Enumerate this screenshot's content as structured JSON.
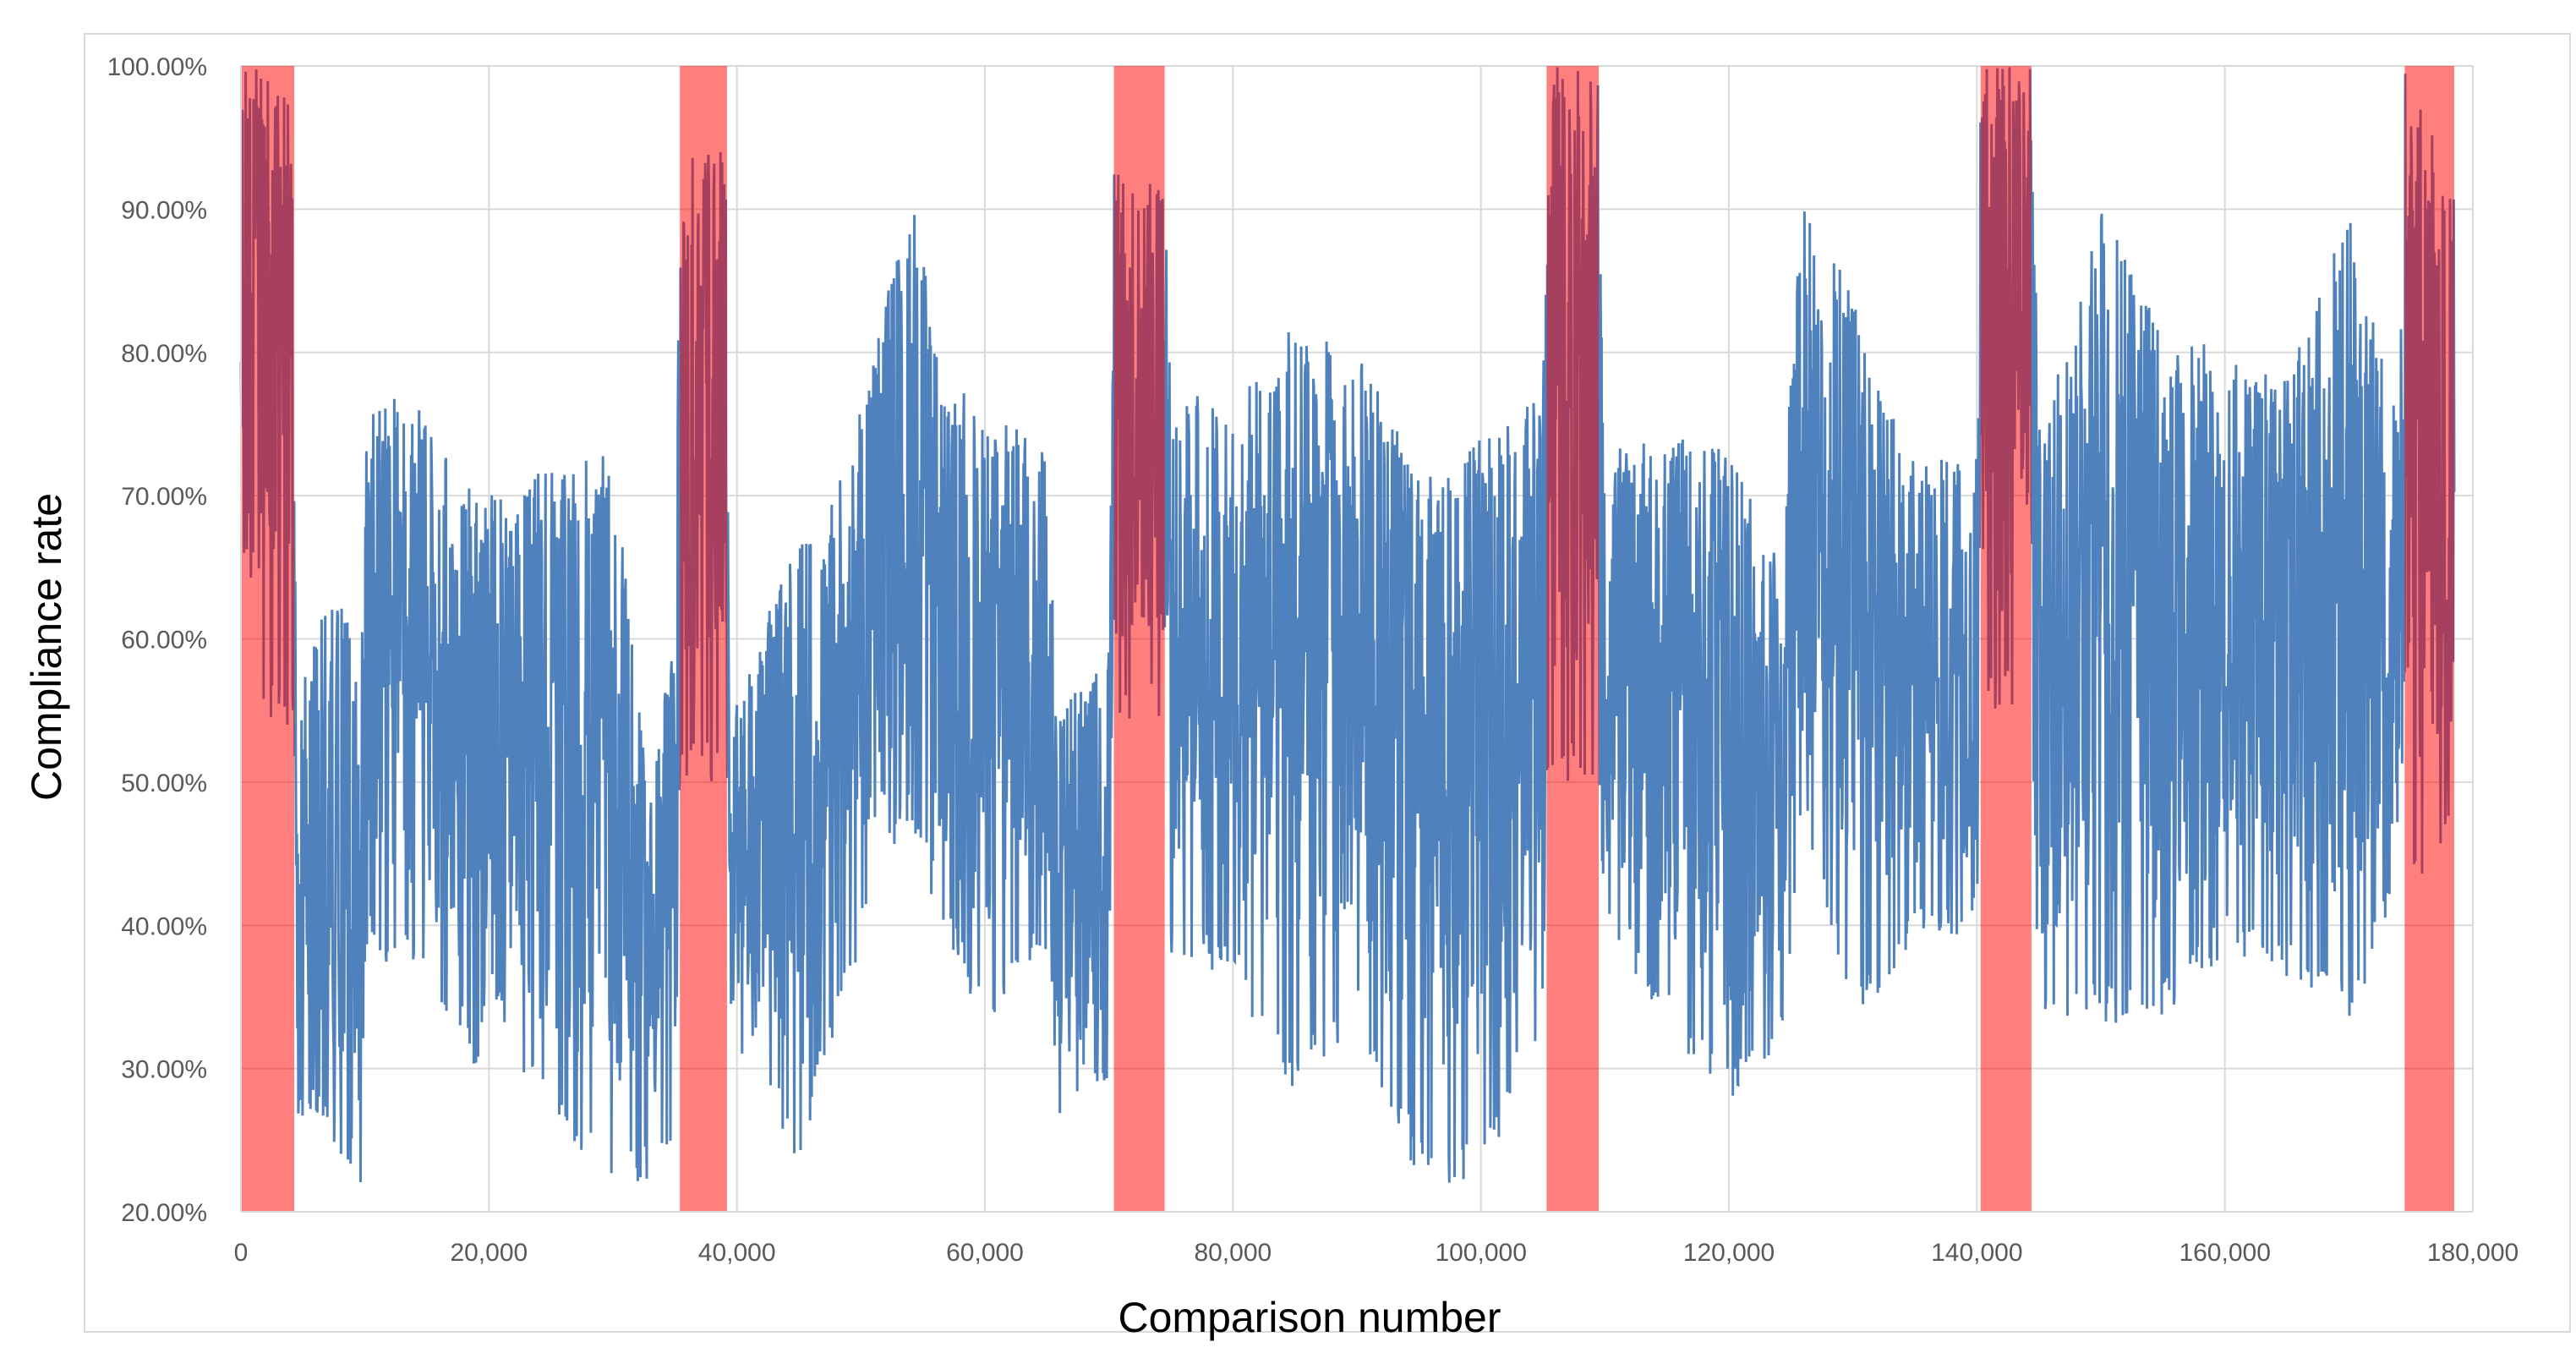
{
  "chart_data": {
    "type": "line",
    "title": "",
    "xlabel": "Comparison number",
    "ylabel": "Compliance rate",
    "xlim": [
      0,
      180000
    ],
    "ylim": [
      0.2,
      1.0
    ],
    "x_ticks": [
      0,
      20000,
      40000,
      60000,
      80000,
      100000,
      120000,
      140000,
      160000,
      180000
    ],
    "x_tick_labels": [
      "0",
      "20,000",
      "40,000",
      "60,000",
      "80,000",
      "100,000",
      "120,000",
      "140,000",
      "160,000",
      "180,000"
    ],
    "y_ticks": [
      0.2,
      0.3,
      0.4,
      0.5,
      0.6,
      0.7,
      0.8,
      0.9,
      1.0
    ],
    "y_tick_labels": [
      "20.00%",
      "30.00%",
      "40.00%",
      "50.00%",
      "60.00%",
      "70.00%",
      "80.00%",
      "90.00%",
      "100.00%"
    ],
    "grid": true,
    "series": [
      {
        "name": "Compliance rate",
        "color": "#4f81bd",
        "note": "dense high-frequency signal; envelope (min/max over windows) read from the figure",
        "envelope": {
          "x": [
            0,
            4300,
            4400,
            7000,
            9700,
            10000,
            14000,
            19000,
            20000,
            25000,
            30000,
            33000,
            35000,
            35400,
            39200,
            39500,
            42000,
            45000,
            48000,
            51000,
            54000,
            57000,
            60000,
            65000,
            66000,
            70000,
            70400,
            74500,
            75000,
            80000,
            85000,
            90000,
            95000,
            100000,
            105000,
            105300,
            109500,
            110000,
            115000,
            120000,
            124000,
            126000,
            130000,
            135000,
            140000,
            140300,
            144400,
            145000,
            150000,
            155000,
            160000,
            165000,
            170000,
            174000,
            174500,
            178500
          ],
          "min": [
            0.54,
            0.54,
            0.27,
            0.25,
            0.22,
            0.38,
            0.36,
            0.3,
            0.35,
            0.25,
            0.22,
            0.22,
            0.25,
            0.5,
            0.5,
            0.3,
            0.3,
            0.22,
            0.33,
            0.41,
            0.47,
            0.38,
            0.33,
            0.38,
            0.26,
            0.29,
            0.54,
            0.54,
            0.38,
            0.36,
            0.28,
            0.33,
            0.22,
            0.22,
            0.33,
            0.5,
            0.5,
            0.4,
            0.33,
            0.27,
            0.3,
            0.47,
            0.33,
            0.38,
            0.4,
            0.55,
            0.55,
            0.33,
            0.33,
            0.33,
            0.38,
            0.36,
            0.33,
            0.42,
            0.42,
            0.45
          ],
          "max": [
            1.0,
            1.0,
            0.54,
            0.66,
            0.58,
            0.78,
            0.77,
            0.7,
            0.7,
            0.72,
            0.73,
            0.5,
            0.61,
            0.94,
            0.94,
            0.54,
            0.61,
            0.67,
            0.7,
            0.8,
            0.91,
            0.78,
            0.77,
            0.73,
            0.55,
            0.6,
            0.93,
            0.93,
            0.77,
            0.77,
            0.82,
            0.8,
            0.72,
            0.74,
            0.77,
            1.0,
            1.0,
            0.73,
            0.75,
            0.73,
            0.67,
            0.91,
            0.84,
            0.73,
            0.73,
            1.0,
            1.0,
            0.75,
            0.9,
            0.82,
            0.8,
            0.78,
            0.9,
            0.75,
            1.0,
            0.92
          ]
        }
      }
    ],
    "highlight_bands": {
      "color": "#ff0000",
      "opacity": 0.5,
      "ranges": [
        [
          0,
          4300
        ],
        [
          35400,
          39200
        ],
        [
          70400,
          74500
        ],
        [
          105300,
          109500
        ],
        [
          140300,
          144400
        ],
        [
          174500,
          178500
        ]
      ]
    }
  }
}
